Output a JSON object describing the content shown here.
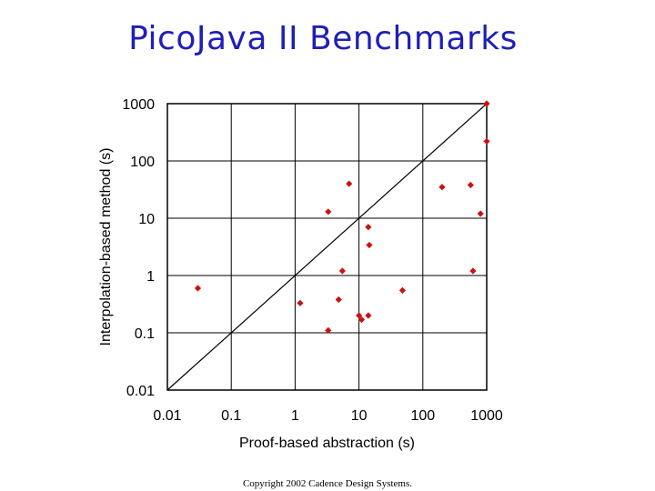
{
  "slide": {
    "title": "PicoJava II Benchmarks",
    "footer": "Copyright 2002 Cadence Design Systems."
  },
  "chart_data": {
    "type": "scatter",
    "title": "PicoJava II Benchmarks",
    "xlabel": "Proof-based abstraction (s)",
    "ylabel": "Interpolation-based method (s)",
    "xscale": "log",
    "yscale": "log",
    "xlim": [
      0.01,
      1000
    ],
    "ylim": [
      0.01,
      1000
    ],
    "xticks": [
      0.01,
      0.1,
      1,
      10,
      100,
      1000
    ],
    "yticks": [
      0.01,
      0.1,
      1,
      10,
      100,
      1000
    ],
    "xtick_labels": [
      "0.01",
      "0.1",
      "1",
      "10",
      "100",
      "1000"
    ],
    "ytick_labels": [
      "0.01",
      "0.1",
      "1",
      "10",
      "100",
      "1000"
    ],
    "grid": true,
    "reference_line": "y = x",
    "marker_color": "#cc1111",
    "points": [
      {
        "x": 0.03,
        "y": 0.6
      },
      {
        "x": 1.2,
        "y": 0.33
      },
      {
        "x": 3.3,
        "y": 0.11
      },
      {
        "x": 3.3,
        "y": 13
      },
      {
        "x": 4.8,
        "y": 0.38
      },
      {
        "x": 5.5,
        "y": 1.2
      },
      {
        "x": 7,
        "y": 40
      },
      {
        "x": 10,
        "y": 0.2
      },
      {
        "x": 11,
        "y": 0.17
      },
      {
        "x": 14,
        "y": 0.2
      },
      {
        "x": 14,
        "y": 7
      },
      {
        "x": 14.5,
        "y": 3.4
      },
      {
        "x": 48,
        "y": 0.55
      },
      {
        "x": 200,
        "y": 35
      },
      {
        "x": 560,
        "y": 38
      },
      {
        "x": 610,
        "y": 1.2
      },
      {
        "x": 800,
        "y": 12
      },
      {
        "x": 1000,
        "y": 1000
      },
      {
        "x": 1000,
        "y": 220
      }
    ]
  }
}
